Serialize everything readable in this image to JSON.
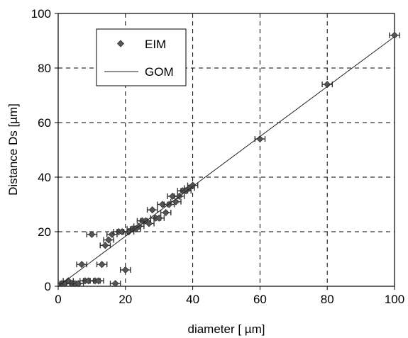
{
  "chart_data": {
    "type": "scatter",
    "title": "",
    "xlabel": "diameter [ µm]",
    "ylabel": "Distance Ds [µm]",
    "xlim": [
      0,
      100
    ],
    "ylim": [
      0,
      100
    ],
    "x_ticks": [
      "0",
      "20",
      "40",
      "60",
      "80",
      "100"
    ],
    "y_ticks": [
      "0",
      "20",
      "40",
      "60",
      "80",
      "100"
    ],
    "grid": true,
    "legend_position": "top-left",
    "legend": [
      {
        "label": "EIM",
        "kind": "marker"
      },
      {
        "label": "GOM",
        "kind": "line"
      }
    ],
    "series": [
      {
        "name": "EIM",
        "kind": "scatter-with-errorbars",
        "color": "#555555",
        "x": [
          1,
          2,
          3,
          4,
          5,
          6,
          7,
          8,
          9,
          10,
          11,
          12,
          13,
          14,
          15,
          16,
          17,
          18,
          19,
          20,
          21,
          22,
          23,
          24,
          25,
          26,
          27,
          28,
          29,
          30,
          31,
          32,
          33,
          34,
          35,
          36,
          37,
          38,
          39,
          40,
          60,
          80,
          100
        ],
        "y": [
          1,
          1,
          2,
          1,
          1,
          1,
          8,
          2,
          2,
          19,
          2,
          2,
          8,
          15,
          17,
          19,
          1,
          20,
          20,
          6,
          20,
          21,
          21,
          22,
          24,
          24,
          23,
          28,
          25,
          25,
          30,
          27,
          30,
          33,
          31,
          33,
          35,
          35,
          36,
          37,
          54,
          74,
          92
        ],
        "x_error": 1.5
      },
      {
        "name": "GOM",
        "kind": "line",
        "color": "#222222",
        "x": [
          0,
          100
        ],
        "y": [
          0,
          91.5
        ]
      }
    ]
  }
}
